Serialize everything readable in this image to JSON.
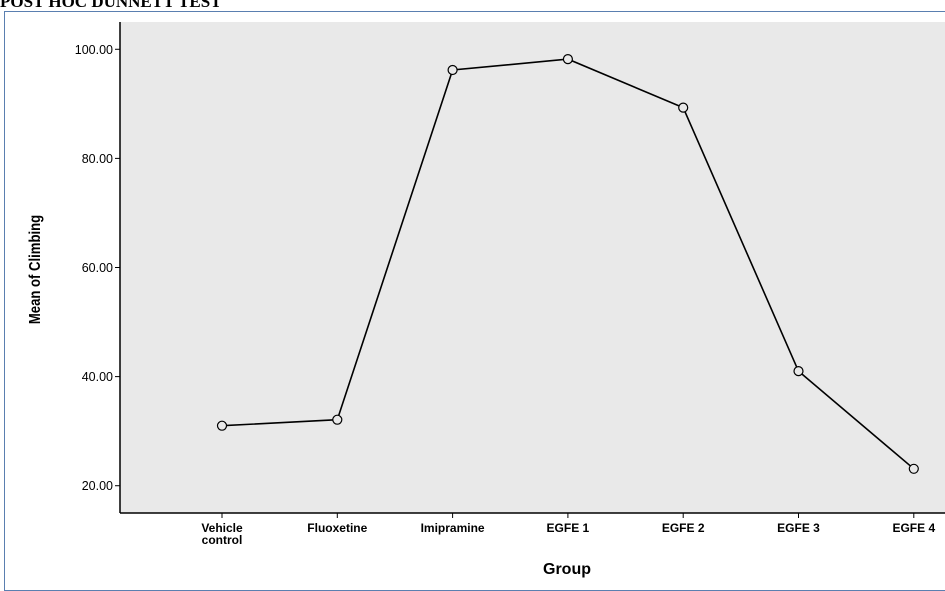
{
  "header": {
    "text": "POST HOC DUNNETT TEST"
  },
  "chart_data": {
    "type": "line",
    "title": "",
    "xlabel": "Group",
    "ylabel": "Mean of Climbing",
    "categories": [
      [
        "Vehicle",
        "control"
      ],
      [
        "Fluoxetine"
      ],
      [
        "Imipramine"
      ],
      [
        "EGFE 1"
      ],
      [
        "EGFE 2"
      ],
      [
        "EGFE 3"
      ],
      [
        "EGFE 4"
      ]
    ],
    "series": [
      {
        "values": [
          31.0,
          32.1,
          96.2,
          98.2,
          89.3,
          41.0,
          23.1
        ]
      }
    ],
    "yticks": [
      "20.00",
      "40.00",
      "60.00",
      "80.00",
      "100.00"
    ],
    "ytick_values": [
      20,
      40,
      60,
      80,
      100
    ],
    "ylim": [
      15,
      105
    ],
    "grid": false,
    "marker": "open-circle",
    "plot_background": "#e9e9e9",
    "line_color": "#000000"
  }
}
